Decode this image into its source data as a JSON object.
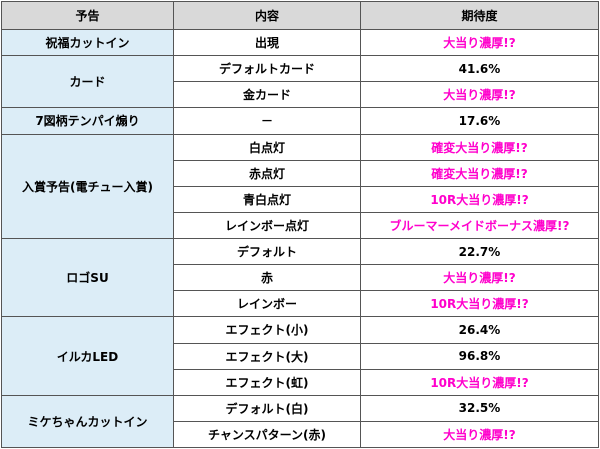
{
  "headers": [
    "予告",
    "内容",
    "期待度"
  ],
  "groups": [
    {
      "label": "祝福カットイン",
      "rows": [
        {
          "content": "出現",
          "value": "大当り濃厚!?",
          "pink": true
        }
      ]
    },
    {
      "label": "カード",
      "rows": [
        {
          "content": "デフォルトカード",
          "value": "41.6%",
          "pink": false
        },
        {
          "content": "金カード",
          "value": "大当り濃厚!?",
          "pink": true
        }
      ]
    },
    {
      "label": "7図柄テンパイ煽り",
      "rows": [
        {
          "content": "－",
          "value": "17.6%",
          "pink": false
        }
      ]
    },
    {
      "label": "入賞予告(電チュー入賞)",
      "rows": [
        {
          "content": "白点灯",
          "value": "確変大当り濃厚!?",
          "pink": true
        },
        {
          "content": "赤点灯",
          "value": "確変大当り濃厚!?",
          "pink": true
        },
        {
          "content": "青白点灯",
          "value": "10R大当り濃厚!?",
          "pink": true
        },
        {
          "content": "レインボー点灯",
          "value": "ブルーマーメイドボーナス濃厚!?",
          "pink": true
        }
      ]
    },
    {
      "label": "ロゴSU",
      "rows": [
        {
          "content": "デフォルト",
          "value": "22.7%",
          "pink": false
        },
        {
          "content": "赤",
          "value": "大当り濃厚!?",
          "pink": true
        },
        {
          "content": "レインボー",
          "value": "10R大当り濃厚!?",
          "pink": true
        }
      ]
    },
    {
      "label": "イルカLED",
      "rows": [
        {
          "content": "エフェクト(小)",
          "value": "26.4%",
          "pink": false
        },
        {
          "content": "エフェクト(大)",
          "value": "96.8%",
          "pink": false
        },
        {
          "content": "エフェクト(虹)",
          "value": "10R大当り濃厚!?",
          "pink": true
        }
      ]
    },
    {
      "label": "ミケちゃんカットイン",
      "rows": [
        {
          "content": "デフォルト(白)",
          "value": "32.5%",
          "pink": false
        },
        {
          "content": "チャンスパターン(赤)",
          "value": "大当り濃厚!?",
          "pink": true
        }
      ]
    }
  ]
}
